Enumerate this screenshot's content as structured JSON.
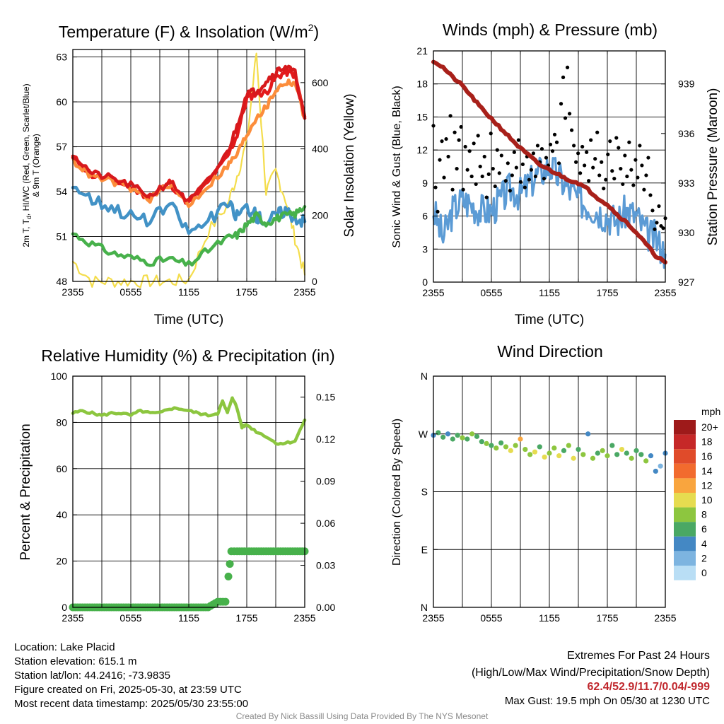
{
  "info": {
    "location": "Location: Lake Placid",
    "elevation": "Station elevation: 615.1 m",
    "latlon": "Station lat/lon: 44.2416; -73.9835",
    "created": "Figure created on Fri, 2025-05-30, at 23:59 UTC",
    "recent": "Most recent data timestamp: 2025/05/30 23:55:00"
  },
  "extremes": {
    "title": "Extremes For Past 24 Hours",
    "subtitle": "(High/Low/Max Wind/Precipitation/Snow Depth)",
    "values": "62.4/52.9/11.7/0.04/-999",
    "gust": "Max Gust: 19.5 mph On 05/30 at 1230 UTC"
  },
  "credit": "Created By Nick Bassill Using Data Provided By The NYS Mesonet",
  "colors": {
    "temp": "#d7191c",
    "wc": "#e31a1c",
    "t9m": "#fc8d3b",
    "dew": "#4292c6",
    "rh": "#47b14b",
    "sun": "#f4dd4c",
    "wind": "#5b9bd5",
    "gust": "#000000",
    "pressure": "#a8201a",
    "rhline": "#8cc63f",
    "precip": "#47b14b"
  },
  "chart_data": [
    {
      "type": "line",
      "title": "Temperature (F) & Insolation (W/m",
      "title_sup": "2",
      "title_close": ")",
      "xlabel": "Time (UTC)",
      "ylabel_left_line1": "2m T, T",
      "ylabel_left_sub": "d",
      "ylabel_left_line1b": ", HI/WC (Red, Green, Scarlet/Blue)",
      "ylabel_left_line2": "& 9m T (Orange)",
      "ylabel_right": "Solar Insolation (Yellow)",
      "x_ticks": [
        "2355",
        "0555",
        "1155",
        "1755",
        "2355"
      ],
      "x": [
        0,
        2,
        4,
        6,
        8,
        10,
        12,
        14,
        16,
        17,
        18,
        19,
        20,
        21,
        22,
        23,
        24
      ],
      "ylim": [
        48,
        63.5
      ],
      "y_ticks": [
        48,
        51,
        54,
        57,
        60,
        63
      ],
      "y2lim": [
        0,
        700
      ],
      "y2_ticks": [
        0,
        200,
        400,
        600
      ],
      "series": [
        {
          "key": "wc",
          "values": [
            56.3,
            55.1,
            54.8,
            54.3,
            53.6,
            54.6,
            53.2,
            54.6,
            56.3,
            57.8,
            60.2,
            60.6,
            60.6,
            61.6,
            62.0,
            61.8,
            59.0
          ]
        },
        {
          "key": "t9m",
          "values": [
            56.1,
            55.0,
            54.7,
            54.2,
            53.5,
            54.5,
            53.1,
            54.4,
            55.7,
            56.5,
            57.8,
            59.0,
            59.6,
            60.8,
            61.3,
            61.3,
            58.9
          ]
        },
        {
          "key": "temp",
          "values": [
            56.5,
            55.2,
            54.9,
            54.4,
            53.7,
            54.7,
            53.3,
            54.7,
            56.6,
            58.4,
            60.6,
            60.7,
            61.4,
            62.0,
            62.4,
            61.9,
            58.9
          ]
        },
        {
          "key": "dew",
          "values": [
            54.5,
            53.5,
            53.0,
            52.4,
            52.0,
            53.2,
            51.3,
            52.0,
            53.2,
            52.4,
            53.0,
            52.4,
            52.0,
            52.4,
            52.8,
            52.3,
            52.0
          ]
        },
        {
          "key": "rh",
          "values": [
            51.2,
            50.5,
            49.9,
            49.6,
            49.3,
            49.5,
            49.1,
            50.1,
            50.9,
            51.1,
            51.8,
            52.4,
            51.9,
            52.2,
            52.4,
            52.5,
            53.0
          ]
        }
      ],
      "insolation": [
        60,
        0,
        0,
        0,
        0,
        0,
        5,
        150,
        230,
        320,
        420,
        690,
        270,
        330,
        250,
        130,
        20
      ]
    },
    {
      "type": "scatter",
      "title": "Winds (mph) & Pressure (mb)",
      "xlabel": "Time (UTC)",
      "ylabel_left": "Sonic Wind & Gust (Blue, Black)",
      "ylabel_right": "Station Pressure (Maroon)",
      "x_ticks": [
        "2355",
        "0555",
        "1155",
        "1755",
        "2355"
      ],
      "ylim": [
        0,
        21
      ],
      "y_ticks": [
        0,
        3,
        6,
        9,
        12,
        15,
        18,
        21
      ],
      "y2lim": [
        927,
        941
      ],
      "y2_ticks": [
        927,
        930,
        933,
        936,
        939
      ],
      "wind_x": [
        0,
        1,
        2,
        3,
        4,
        5,
        6,
        7,
        8,
        9,
        10,
        11,
        12,
        13,
        14,
        15,
        16,
        17,
        18,
        19,
        20,
        21,
        22,
        23,
        24
      ],
      "wind": [
        6.5,
        4.0,
        6.5,
        7.5,
        7.0,
        6.5,
        6.5,
        7.5,
        8.5,
        8.0,
        9.0,
        10.0,
        10.5,
        9.5,
        8.5,
        7.5,
        7.0,
        6.5,
        6.0,
        5.5,
        6.5,
        6.0,
        4.5,
        4.0,
        2.5
      ],
      "gust": [
        14.2,
        8.6,
        6.4,
        11.1,
        12.8,
        9.5,
        13.0,
        11.4,
        15.1,
        8.4,
        13.6,
        10.3,
        12.9,
        14.1,
        8.4,
        12.3,
        10.2,
        11.9,
        9.6,
        12.6,
        8.9,
        13.3,
        10.5,
        9.6,
        11.4,
        7.7,
        9.8,
        13.5,
        10.3,
        8.7,
        12.0,
        9.9,
        11.5,
        13.7,
        9.2,
        10.8,
        8.3,
        9.7,
        11.8,
        10.4,
        12.9,
        9.1,
        10.7,
        8.6,
        11.4,
        9.3,
        10.2,
        11.7,
        9.6,
        12.4,
        10.9,
        12.1,
        9.4,
        11.3,
        10.6,
        12.5,
        11.9,
        13.4,
        12.7,
        10.8,
        16.2,
        18.6,
        14.9,
        19.5,
        15.3,
        13.8,
        12.4,
        10.9,
        11.7,
        9.9,
        12.3,
        10.6,
        11.8,
        9.2,
        12.9,
        10.4,
        11.2,
        13.6,
        9.7,
        10.9,
        8.5,
        9.3,
        11.6,
        12.8,
        10.1,
        9.4,
        13.1,
        12.2,
        10.3,
        8.9,
        11.5,
        9.6,
        12.7,
        10.2,
        8.8,
        11.1,
        9.5,
        12.4,
        10.6,
        8.4,
        9.7,
        11.3,
        7.9,
        6.5,
        4.8,
        5.4,
        6.9,
        5.1,
        4.9,
        5.8
      ],
      "pressure_x": [
        0,
        1,
        2,
        3,
        4,
        5,
        6,
        7,
        8,
        9,
        10,
        11,
        12,
        13,
        14,
        15,
        16,
        17,
        18,
        19,
        20,
        21,
        22,
        23,
        24
      ],
      "pressure": [
        940.4,
        940.0,
        939.4,
        938.9,
        938.2,
        937.5,
        936.9,
        936.3,
        935.7,
        935.1,
        934.6,
        934.1,
        933.8,
        933.5,
        933.2,
        933.0,
        932.6,
        932.1,
        931.7,
        931.1,
        930.6,
        930.0,
        929.3,
        928.6,
        928.2
      ]
    },
    {
      "type": "line",
      "title": "Relative Humidity (%) & Precipitation (in)",
      "ylabel_left": "Percent & Precipitation",
      "x_ticks": [
        "2355",
        "0555",
        "1155",
        "1755",
        "2355"
      ],
      "ylim": [
        0,
        100
      ],
      "y_ticks": [
        0,
        20,
        40,
        60,
        80,
        100
      ],
      "y2lim": [
        0,
        0.165
      ],
      "y2_ticks": [
        "0.00",
        "0.03",
        "0.06",
        "0.09",
        "0.12",
        "0.15"
      ],
      "y2_tick_values": [
        0,
        0.03,
        0.06,
        0.09,
        0.12,
        0.15
      ],
      "x": [
        0,
        1,
        2,
        3,
        4,
        5,
        6,
        7,
        8,
        9,
        10,
        11,
        12,
        13,
        14,
        15,
        15.5,
        16,
        16.5,
        17,
        17.5,
        18,
        19,
        20,
        21,
        22,
        23,
        24
      ],
      "rh": [
        84,
        85,
        84,
        83,
        84,
        84,
        83,
        85,
        84,
        84,
        86,
        86,
        85,
        84,
        83,
        84,
        89,
        84,
        91,
        86,
        78,
        79,
        76,
        74,
        71,
        71,
        72,
        81
      ],
      "precip_x": [
        0,
        2,
        4,
        6,
        8,
        10,
        12,
        14,
        15.0,
        15.8,
        16.1,
        16.25,
        16.4,
        17,
        18,
        20,
        22,
        24
      ],
      "precip": [
        0,
        0,
        0,
        0,
        0,
        0,
        0,
        0,
        0.004,
        0.004,
        0.022,
        0.031,
        0.04,
        0.04,
        0.04,
        0.04,
        0.04,
        0.04
      ]
    },
    {
      "type": "scatter",
      "title": "Wind Direction",
      "ylabel_left": "Direction (Colored By Speed)",
      "x_ticks": [
        "2355",
        "0555",
        "1155",
        "1755",
        "2355"
      ],
      "y_ticks": [
        "N",
        "E",
        "S",
        "W",
        "N"
      ],
      "ylim": [
        0,
        360
      ],
      "legend_title": "mph",
      "legend_labels": [
        "20+",
        "18",
        "16",
        "14",
        "12",
        "10",
        "8",
        "6",
        "4",
        "2",
        "0"
      ],
      "legend_colors": [
        "#9e1a1a",
        "#c62828",
        "#e04b2a",
        "#f26b2e",
        "#f9a53e",
        "#e6dc50",
        "#8dc63f",
        "#4aa864",
        "#4488c4",
        "#7db4e0",
        "#b9def5"
      ],
      "points_x": [
        0,
        0.5,
        1,
        1.5,
        2,
        2.5,
        3,
        3.5,
        4,
        4.5,
        5,
        5.5,
        6,
        6.5,
        7,
        7.5,
        8,
        8.5,
        9,
        9.5,
        10,
        10.5,
        11,
        11.5,
        12,
        12.5,
        13,
        13.5,
        14,
        14.5,
        15,
        15.5,
        16,
        16.5,
        17,
        17.5,
        18,
        18.5,
        19,
        19.5,
        20,
        20.5,
        21,
        21.5,
        22,
        22.5,
        23,
        23.5,
        24
      ],
      "points_dir": [
        268,
        272,
        265,
        270,
        262,
        268,
        264,
        262,
        270,
        266,
        258,
        255,
        252,
        248,
        256,
        250,
        244,
        252,
        262,
        246,
        238,
        242,
        250,
        234,
        240,
        248,
        236,
        244,
        252,
        232,
        246,
        238,
        270,
        232,
        240,
        244,
        236,
        252,
        238,
        246,
        240,
        232,
        244,
        238,
        228,
        236,
        212,
        220,
        240
      ],
      "points_speed": [
        4,
        5,
        6,
        4,
        6,
        5,
        7,
        6,
        8,
        5,
        6,
        7,
        5,
        8,
        6,
        7,
        9,
        8,
        11,
        7,
        8,
        10,
        6,
        9,
        7,
        8,
        10,
        6,
        7,
        9,
        5,
        7,
        4,
        8,
        6,
        7,
        8,
        6,
        5,
        9,
        6,
        7,
        5,
        6,
        7,
        4,
        3,
        2,
        3
      ]
    }
  ]
}
